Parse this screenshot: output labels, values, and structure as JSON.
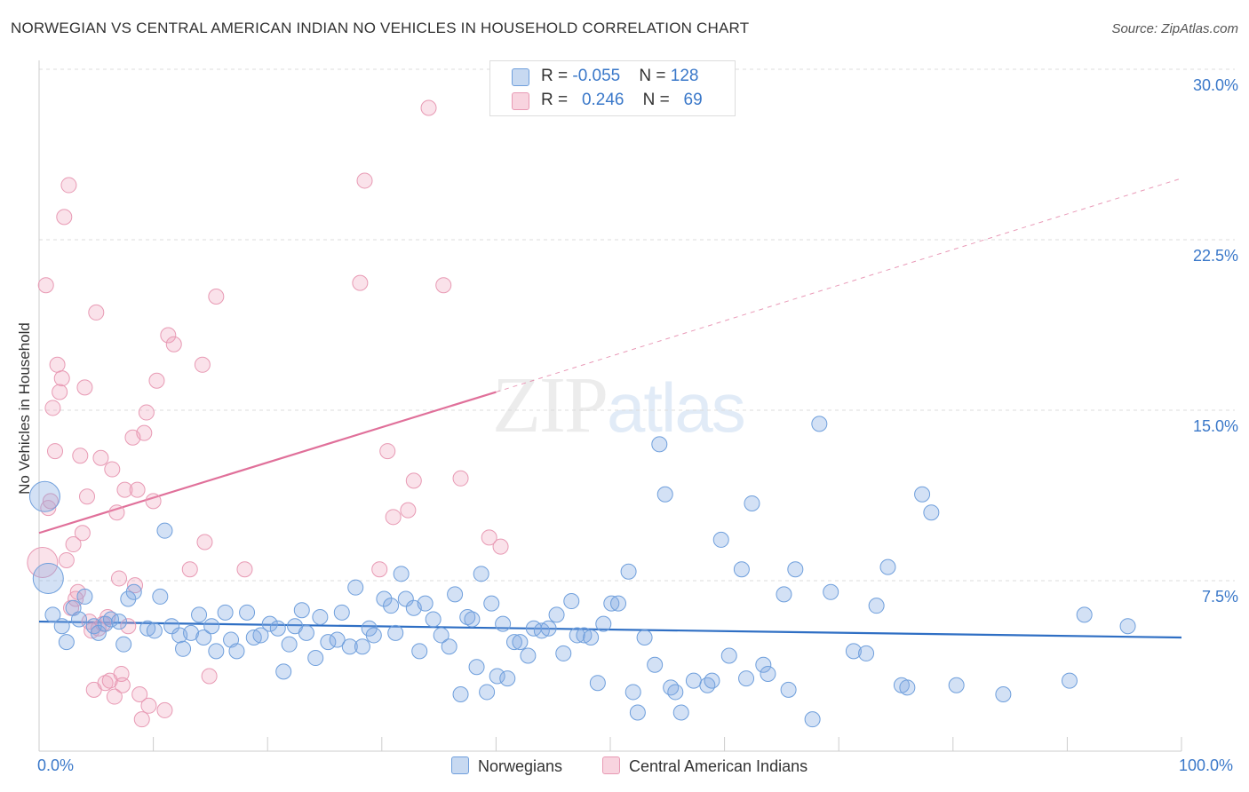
{
  "title": "NORWEGIAN VS CENTRAL AMERICAN INDIAN NO VEHICLES IN HOUSEHOLD CORRELATION CHART",
  "source": "Source: ZipAtlas.com",
  "watermark": {
    "zip": "ZIP",
    "atlas": "atlas"
  },
  "legend": {
    "rows": [
      {
        "r_label": "R = ",
        "r_value": "-0.055",
        "n_label": "N = ",
        "n_value": "128"
      },
      {
        "r_label": "R = ",
        "r_value": "0.246",
        "n_label": "N = ",
        "n_value": "69"
      }
    ]
  },
  "bottom_legend": {
    "a": "Norwegians",
    "b": "Central American Indians"
  },
  "colors": {
    "blue_fill": "rgba(130,170,225,0.35)",
    "blue_stroke": "#6f9fdc",
    "blue_line": "#2f6fc4",
    "pink_fill": "rgba(240,160,185,0.30)",
    "pink_stroke": "#e89ab4",
    "pink_line": "#e0709a",
    "grid": "#dddddd",
    "tick_text": "#3a78c9"
  },
  "chart_data": {
    "type": "scatter",
    "title": "NORWEGIAN VS CENTRAL AMERICAN INDIAN NO VEHICLES IN HOUSEHOLD CORRELATION CHART",
    "xlabel": "",
    "ylabel": "No Vehicles in Household",
    "xlim": [
      0,
      100
    ],
    "ylim": [
      0,
      30
    ],
    "x_tick_labels": [
      "0.0%",
      "100.0%"
    ],
    "y_ticks": [
      7.5,
      15.0,
      22.5,
      30.0
    ],
    "y_tick_labels": [
      "7.5%",
      "15.0%",
      "22.5%",
      "30.0%"
    ],
    "grid": true,
    "legend_placement": "top-center",
    "series": [
      {
        "name": "Norwegians",
        "r": -0.055,
        "n": 128,
        "trend": {
          "x": [
            0,
            100
          ],
          "y": [
            5.7,
            5.0
          ]
        },
        "points": [
          [
            0.5,
            11.2,
            2
          ],
          [
            0.8,
            7.6,
            2
          ],
          [
            1.2,
            6.0,
            1
          ],
          [
            2,
            5.5,
            1
          ],
          [
            2.4,
            4.8,
            1
          ],
          [
            3,
            6.3,
            1
          ],
          [
            3.5,
            5.8,
            1
          ],
          [
            4,
            6.8,
            1
          ],
          [
            4.8,
            5.5,
            1
          ],
          [
            5.2,
            5.2,
            1
          ],
          [
            5.8,
            5.6,
            1
          ],
          [
            6.3,
            5.8,
            1
          ],
          [
            7,
            5.7,
            1
          ],
          [
            7.4,
            4.7,
            1
          ],
          [
            7.8,
            6.7,
            1
          ],
          [
            8.3,
            7.0,
            1
          ],
          [
            9.5,
            5.4,
            1
          ],
          [
            10.1,
            5.3,
            1
          ],
          [
            10.6,
            6.8,
            1
          ],
          [
            11,
            9.7,
            1
          ],
          [
            11.6,
            5.5,
            1
          ],
          [
            12.3,
            5.1,
            1
          ],
          [
            12.6,
            4.5,
            1
          ],
          [
            13.3,
            5.2,
            1
          ],
          [
            14,
            6.0,
            1
          ],
          [
            14.4,
            5.0,
            1
          ],
          [
            15.1,
            5.5,
            1
          ],
          [
            15.5,
            4.4,
            1
          ],
          [
            16.3,
            6.1,
            1
          ],
          [
            16.8,
            4.9,
            1
          ],
          [
            17.3,
            4.4,
            1
          ],
          [
            18.2,
            6.1,
            1
          ],
          [
            18.8,
            5.0,
            1
          ],
          [
            19.4,
            5.1,
            1
          ],
          [
            20.2,
            5.6,
            1
          ],
          [
            20.9,
            5.4,
            1
          ],
          [
            21.4,
            3.5,
            1
          ],
          [
            21.9,
            4.7,
            1
          ],
          [
            22.4,
            5.5,
            1
          ],
          [
            23,
            6.2,
            1
          ],
          [
            23.4,
            5.2,
            1
          ],
          [
            24.2,
            4.1,
            1
          ],
          [
            24.6,
            5.9,
            1
          ],
          [
            25.3,
            4.8,
            1
          ],
          [
            26.1,
            4.9,
            1
          ],
          [
            26.5,
            6.1,
            1
          ],
          [
            27.2,
            4.6,
            1
          ],
          [
            27.7,
            7.2,
            1
          ],
          [
            28.3,
            4.6,
            1
          ],
          [
            28.9,
            5.4,
            1
          ],
          [
            29.3,
            5.1,
            1
          ],
          [
            30.2,
            6.7,
            1
          ],
          [
            30.8,
            6.4,
            1
          ],
          [
            31.2,
            5.2,
            1
          ],
          [
            31.7,
            7.8,
            1
          ],
          [
            32.1,
            6.7,
            1
          ],
          [
            32.8,
            6.3,
            1
          ],
          [
            33.3,
            4.4,
            1
          ],
          [
            33.8,
            6.5,
            1
          ],
          [
            34.5,
            5.8,
            1
          ],
          [
            35.2,
            5.1,
            1
          ],
          [
            35.9,
            4.6,
            1
          ],
          [
            36.4,
            6.9,
            1
          ],
          [
            36.9,
            2.5,
            1
          ],
          [
            37.5,
            5.9,
            1
          ],
          [
            37.9,
            5.8,
            1
          ],
          [
            38.3,
            3.7,
            1
          ],
          [
            38.7,
            7.8,
            1
          ],
          [
            39.2,
            2.6,
            1
          ],
          [
            39.6,
            6.5,
            1
          ],
          [
            40.1,
            3.3,
            1
          ],
          [
            40.6,
            5.6,
            1
          ],
          [
            41,
            3.2,
            1
          ],
          [
            41.6,
            4.8,
            1
          ],
          [
            42.1,
            4.8,
            1
          ],
          [
            42.8,
            4.2,
            1
          ],
          [
            43.3,
            5.4,
            1
          ],
          [
            44,
            5.3,
            1
          ],
          [
            44.6,
            5.4,
            1
          ],
          [
            45.3,
            6.0,
            1
          ],
          [
            45.9,
            4.3,
            1
          ],
          [
            46.6,
            6.6,
            1
          ],
          [
            47.1,
            5.1,
            1
          ],
          [
            47.7,
            5.1,
            1
          ],
          [
            48.3,
            5.0,
            1
          ],
          [
            48.9,
            3.0,
            1
          ],
          [
            49.4,
            5.6,
            1
          ],
          [
            50.1,
            6.5,
            1
          ],
          [
            50.7,
            6.5,
            1
          ],
          [
            51.6,
            7.9,
            1
          ],
          [
            52.0,
            2.6,
            1
          ],
          [
            52.4,
            1.7,
            1
          ],
          [
            53,
            5.0,
            1
          ],
          [
            53.9,
            3.8,
            1
          ],
          [
            54.3,
            13.5,
            1
          ],
          [
            54.8,
            11.3,
            1
          ],
          [
            55.3,
            2.8,
            1
          ],
          [
            55.7,
            2.6,
            1
          ],
          [
            56.2,
            1.7,
            1
          ],
          [
            57.3,
            3.1,
            1
          ],
          [
            58.5,
            2.9,
            1
          ],
          [
            58.9,
            3.1,
            1
          ],
          [
            59.7,
            9.3,
            1
          ],
          [
            60.4,
            4.2,
            1
          ],
          [
            61.5,
            8.0,
            1
          ],
          [
            61.9,
            3.2,
            1
          ],
          [
            62.4,
            10.9,
            1
          ],
          [
            63.4,
            3.8,
            1
          ],
          [
            63.8,
            3.4,
            1
          ],
          [
            65.2,
            6.9,
            1
          ],
          [
            65.6,
            2.7,
            1
          ],
          [
            66.2,
            8.0,
            1
          ],
          [
            67.7,
            1.4,
            1
          ],
          [
            68.3,
            14.4,
            1
          ],
          [
            69.3,
            7.0,
            1
          ],
          [
            71.3,
            4.4,
            1
          ],
          [
            72.4,
            4.3,
            1
          ],
          [
            73.3,
            6.4,
            1
          ],
          [
            74.3,
            8.1,
            1
          ],
          [
            75.5,
            2.9,
            1
          ],
          [
            76,
            2.8,
            1
          ],
          [
            77.3,
            11.3,
            1
          ],
          [
            78.1,
            10.5,
            1
          ],
          [
            80.3,
            2.9,
            1
          ],
          [
            84.4,
            2.5,
            1
          ],
          [
            90.2,
            3.1,
            1
          ],
          [
            91.5,
            6.0,
            1
          ],
          [
            95.3,
            5.5,
            1
          ]
        ]
      },
      {
        "name": "Central American Indians",
        "r": 0.246,
        "n": 69,
        "trend": {
          "x": [
            0,
            40
          ],
          "y": [
            9.6,
            15.8
          ]
        },
        "trend_extended": {
          "x": [
            40,
            100
          ],
          "y": [
            15.8,
            25.2
          ]
        },
        "points": [
          [
            0.3,
            8.3,
            2
          ],
          [
            0.6,
            20.5,
            1
          ],
          [
            0.8,
            10.7,
            1
          ],
          [
            1,
            11.0,
            1
          ],
          [
            1.2,
            15.1,
            1
          ],
          [
            1.4,
            13.2,
            1
          ],
          [
            1.6,
            17.0,
            1
          ],
          [
            1.8,
            15.8,
            1
          ],
          [
            2,
            16.4,
            1
          ],
          [
            2.2,
            23.5,
            1
          ],
          [
            2.4,
            8.4,
            1
          ],
          [
            2.6,
            24.9,
            1
          ],
          [
            2.8,
            6.3,
            1
          ],
          [
            3,
            9.1,
            1
          ],
          [
            3.2,
            6.7,
            1
          ],
          [
            3.4,
            7.0,
            1
          ],
          [
            3.6,
            13.0,
            1
          ],
          [
            3.8,
            9.6,
            1
          ],
          [
            4,
            16.0,
            1
          ],
          [
            4.2,
            11.2,
            1
          ],
          [
            4.4,
            5.7,
            1
          ],
          [
            4.6,
            5.3,
            1
          ],
          [
            4.8,
            2.7,
            1
          ],
          [
            5,
            19.3,
            1
          ],
          [
            5.2,
            5.4,
            1
          ],
          [
            5.4,
            12.9,
            1
          ],
          [
            5.6,
            5.6,
            1
          ],
          [
            5.8,
            3.0,
            1
          ],
          [
            6,
            5.9,
            1
          ],
          [
            6.2,
            3.1,
            1
          ],
          [
            6.4,
            12.4,
            1
          ],
          [
            6.6,
            2.4,
            1
          ],
          [
            6.8,
            10.5,
            1
          ],
          [
            7,
            7.6,
            1
          ],
          [
            7.2,
            3.4,
            1
          ],
          [
            7.3,
            2.9,
            1
          ],
          [
            7.5,
            11.5,
            1
          ],
          [
            7.8,
            5.5,
            1
          ],
          [
            8.2,
            13.8,
            1
          ],
          [
            8.4,
            7.3,
            1
          ],
          [
            8.6,
            11.5,
            1
          ],
          [
            8.8,
            2.5,
            1
          ],
          [
            9,
            1.4,
            1
          ],
          [
            9.2,
            14.0,
            1
          ],
          [
            9.4,
            14.9,
            1
          ],
          [
            9.6,
            2.0,
            1
          ],
          [
            10,
            11.0,
            1
          ],
          [
            10.3,
            16.3,
            1
          ],
          [
            11,
            1.8,
            1
          ],
          [
            11.3,
            18.3,
            1
          ],
          [
            11.8,
            17.9,
            1
          ],
          [
            13.2,
            8.0,
            1
          ],
          [
            14.3,
            17.0,
            1
          ],
          [
            14.5,
            9.2,
            1
          ],
          [
            14.9,
            3.3,
            1
          ],
          [
            15.5,
            20.0,
            1
          ],
          [
            18,
            8.0,
            1
          ],
          [
            28.1,
            20.6,
            1
          ],
          [
            28.5,
            25.1,
            1
          ],
          [
            29.8,
            8.0,
            1
          ],
          [
            30.5,
            13.2,
            1
          ],
          [
            31,
            10.3,
            1
          ],
          [
            32.3,
            10.6,
            1
          ],
          [
            32.8,
            11.9,
            1
          ],
          [
            34.1,
            28.3,
            1
          ],
          [
            35.4,
            20.5,
            1
          ],
          [
            36.9,
            12.0,
            1
          ],
          [
            39.4,
            9.4,
            1
          ],
          [
            40.4,
            9.0,
            1
          ]
        ]
      }
    ]
  }
}
